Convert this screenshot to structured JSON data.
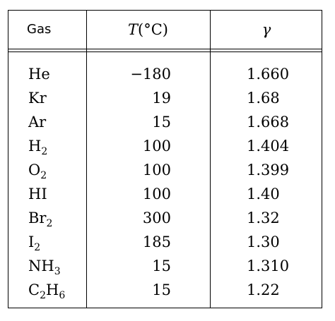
{
  "table": {
    "headers": {
      "gas": "Gas",
      "temperature_var": "T",
      "temperature_unit": "(°C)",
      "gamma": "γ"
    },
    "rows": [
      {
        "gas_base": "He",
        "gas_sub": "",
        "gas_mid": "",
        "gas_sub2": "",
        "temperature": "−180",
        "gamma": "1.660"
      },
      {
        "gas_base": "Kr",
        "gas_sub": "",
        "gas_mid": "",
        "gas_sub2": "",
        "temperature": "19",
        "gamma": "1.68"
      },
      {
        "gas_base": "Ar",
        "gas_sub": "",
        "gas_mid": "",
        "gas_sub2": "",
        "temperature": "15",
        "gamma": "1.668"
      },
      {
        "gas_base": "H",
        "gas_sub": "2",
        "gas_mid": "",
        "gas_sub2": "",
        "temperature": "100",
        "gamma": "1.404"
      },
      {
        "gas_base": "O",
        "gas_sub": "2",
        "gas_mid": "",
        "gas_sub2": "",
        "temperature": "100",
        "gamma": "1.399"
      },
      {
        "gas_base": "HI",
        "gas_sub": "",
        "gas_mid": "",
        "gas_sub2": "",
        "temperature": "100",
        "gamma": "1.40"
      },
      {
        "gas_base": "Br",
        "gas_sub": "2",
        "gas_mid": "",
        "gas_sub2": "",
        "temperature": "300",
        "gamma": "1.32"
      },
      {
        "gas_base": "I",
        "gas_sub": "2",
        "gas_mid": "",
        "gas_sub2": "",
        "temperature": "185",
        "gamma": "1.30"
      },
      {
        "gas_base": "NH",
        "gas_sub": "3",
        "gas_mid": "",
        "gas_sub2": "",
        "temperature": "15",
        "gamma": "1.310"
      },
      {
        "gas_base": "C",
        "gas_sub": "2",
        "gas_mid": "H",
        "gas_sub2": "6",
        "temperature": "15",
        "gamma": "1.22"
      }
    ]
  }
}
